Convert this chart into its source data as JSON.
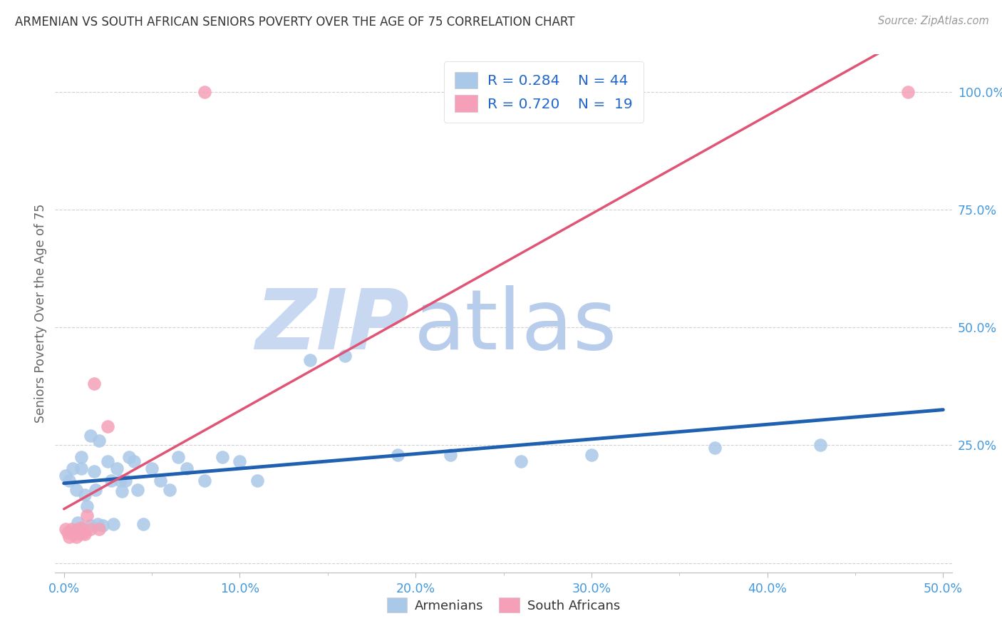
{
  "title": "ARMENIAN VS SOUTH AFRICAN SENIORS POVERTY OVER THE AGE OF 75 CORRELATION CHART",
  "source": "Source: ZipAtlas.com",
  "xlim": [
    -0.005,
    0.505
  ],
  "ylim": [
    -0.02,
    1.08
  ],
  "x_major_ticks": [
    0.0,
    0.1,
    0.2,
    0.3,
    0.4,
    0.5
  ],
  "x_tick_labels": [
    "0.0%",
    "10.0%",
    "20.0%",
    "30.0%",
    "40.0%",
    "50.0%"
  ],
  "y_ticks": [
    0.0,
    0.25,
    0.5,
    0.75,
    1.0
  ],
  "y_tick_labels": [
    "",
    "25.0%",
    "50.0%",
    "75.0%",
    "100.0%"
  ],
  "armenian_R": "0.284",
  "armenian_N": "44",
  "sa_R": "0.720",
  "sa_N": "19",
  "armenian_dot_color": "#aac8e8",
  "sa_dot_color": "#f5a0b8",
  "armenian_line_color": "#2060b0",
  "sa_line_color": "#e05575",
  "legend_text_color": "#2266cc",
  "title_color": "#333333",
  "watermark_zip_color": "#c8d8f0",
  "watermark_atlas_color": "#b8ccec",
  "axis_tick_color": "#4499dd",
  "grid_color": "#cccccc",
  "ylabel": "Seniors Poverty Over the Age of 75",
  "armenians_x": [
    0.001,
    0.003,
    0.005,
    0.007,
    0.008,
    0.01,
    0.01,
    0.012,
    0.013,
    0.015,
    0.015,
    0.017,
    0.018,
    0.019,
    0.02,
    0.022,
    0.025,
    0.027,
    0.028,
    0.03,
    0.032,
    0.033,
    0.035,
    0.037,
    0.04,
    0.042,
    0.045,
    0.05,
    0.055,
    0.06,
    0.065,
    0.07,
    0.08,
    0.09,
    0.1,
    0.11,
    0.14,
    0.16,
    0.19,
    0.22,
    0.26,
    0.3,
    0.37,
    0.43
  ],
  "armenians_y": [
    0.185,
    0.175,
    0.2,
    0.155,
    0.085,
    0.225,
    0.2,
    0.145,
    0.12,
    0.08,
    0.27,
    0.195,
    0.155,
    0.082,
    0.26,
    0.08,
    0.215,
    0.175,
    0.082,
    0.2,
    0.175,
    0.152,
    0.175,
    0.225,
    0.215,
    0.155,
    0.082,
    0.2,
    0.175,
    0.155,
    0.225,
    0.2,
    0.175,
    0.225,
    0.215,
    0.175,
    0.43,
    0.44,
    0.23,
    0.23,
    0.215,
    0.23,
    0.245,
    0.25
  ],
  "sa_x": [
    0.001,
    0.002,
    0.003,
    0.004,
    0.005,
    0.006,
    0.007,
    0.008,
    0.009,
    0.01,
    0.011,
    0.012,
    0.013,
    0.015,
    0.017,
    0.02,
    0.025,
    0.08,
    0.48
  ],
  "sa_y": [
    0.072,
    0.065,
    0.055,
    0.072,
    0.065,
    0.062,
    0.055,
    0.072,
    0.062,
    0.075,
    0.065,
    0.062,
    0.1,
    0.072,
    0.38,
    0.072,
    0.29,
    1.0,
    1.0
  ]
}
